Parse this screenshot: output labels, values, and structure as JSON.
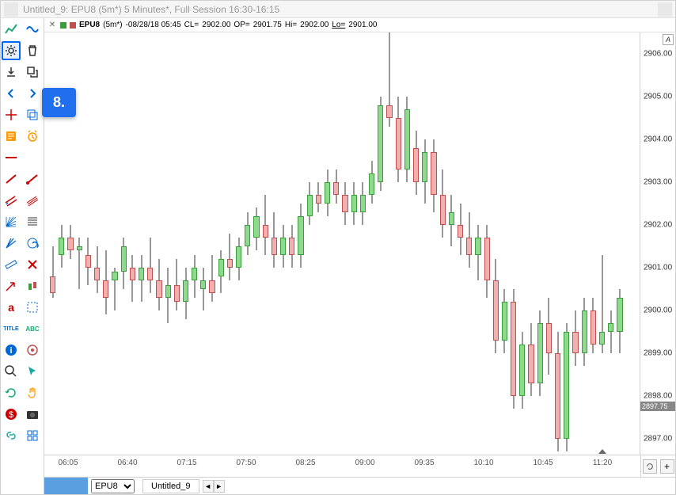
{
  "titlebar": {
    "title": "Untitled_9: EPU8 (5m*) 5 Minutes*, Full Session 16:30-16:15"
  },
  "callout": {
    "label": "8."
  },
  "databar": {
    "symbol": "EPU8",
    "interval": "(5m*)",
    "date": "-08/28/18 05:45",
    "cl_label": "CL=",
    "cl": "2902.00",
    "op_label": "OP=",
    "op": "2901.75",
    "hi_label": "Hi=",
    "hi": "2902.00",
    "lo_label": "Lo=",
    "lo": "2901.00",
    "up_color": "#3a9f3a",
    "dn_color": "#c05050"
  },
  "chart": {
    "ymin": 2896.5,
    "ymax": 2906.5,
    "yticks": [
      2897.0,
      2898.0,
      2899.0,
      2900.0,
      2901.0,
      2902.0,
      2903.0,
      2904.0,
      2905.0,
      2906.0
    ],
    "price_marker": 2897.75,
    "xticks": [
      "06:05",
      "06:40",
      "07:15",
      "07:50",
      "08:25",
      "09:00",
      "09:35",
      "10:10",
      "10:45",
      "11:20"
    ],
    "xarrow_index": 9,
    "up_fill": "#8fd98f",
    "up_border": "#3a9f3a",
    "dn_fill": "#f0b0b0",
    "dn_border": "#c05050",
    "candles": [
      {
        "o": 2900.8,
        "h": 2901.5,
        "l": 2900.3,
        "c": 2900.4
      },
      {
        "o": 2901.3,
        "h": 2902.0,
        "l": 2901.0,
        "c": 2901.7
      },
      {
        "o": 2901.7,
        "h": 2902.0,
        "l": 2901.2,
        "c": 2901.4
      },
      {
        "o": 2901.4,
        "h": 2901.7,
        "l": 2900.5,
        "c": 2901.5
      },
      {
        "o": 2901.3,
        "h": 2901.7,
        "l": 2900.6,
        "c": 2901.0
      },
      {
        "o": 2901.0,
        "h": 2901.5,
        "l": 2900.4,
        "c": 2900.7
      },
      {
        "o": 2900.7,
        "h": 2901.4,
        "l": 2899.9,
        "c": 2900.3
      },
      {
        "o": 2900.7,
        "h": 2901.0,
        "l": 2900.0,
        "c": 2900.9
      },
      {
        "o": 2900.9,
        "h": 2901.7,
        "l": 2900.5,
        "c": 2901.5
      },
      {
        "o": 2901.0,
        "h": 2901.3,
        "l": 2900.2,
        "c": 2900.7
      },
      {
        "o": 2900.7,
        "h": 2901.3,
        "l": 2900.2,
        "c": 2901.0
      },
      {
        "o": 2901.0,
        "h": 2901.7,
        "l": 2900.4,
        "c": 2900.7
      },
      {
        "o": 2900.7,
        "h": 2901.2,
        "l": 2900.0,
        "c": 2900.3
      },
      {
        "o": 2900.3,
        "h": 2901.0,
        "l": 2899.7,
        "c": 2900.6
      },
      {
        "o": 2900.6,
        "h": 2901.2,
        "l": 2900.0,
        "c": 2900.2
      },
      {
        "o": 2900.2,
        "h": 2901.0,
        "l": 2899.8,
        "c": 2900.7
      },
      {
        "o": 2900.7,
        "h": 2901.3,
        "l": 2900.3,
        "c": 2901.0
      },
      {
        "o": 2900.5,
        "h": 2901.0,
        "l": 2900.0,
        "c": 2900.7
      },
      {
        "o": 2900.7,
        "h": 2901.3,
        "l": 2900.2,
        "c": 2900.4
      },
      {
        "o": 2900.8,
        "h": 2901.4,
        "l": 2900.4,
        "c": 2901.2
      },
      {
        "o": 2901.2,
        "h": 2901.8,
        "l": 2900.7,
        "c": 2901.0
      },
      {
        "o": 2901.0,
        "h": 2901.7,
        "l": 2900.7,
        "c": 2901.5
      },
      {
        "o": 2901.5,
        "h": 2902.3,
        "l": 2901.3,
        "c": 2902.0
      },
      {
        "o": 2901.7,
        "h": 2902.4,
        "l": 2901.4,
        "c": 2902.2
      },
      {
        "o": 2902.0,
        "h": 2902.7,
        "l": 2901.3,
        "c": 2901.7
      },
      {
        "o": 2901.7,
        "h": 2902.3,
        "l": 2901.0,
        "c": 2901.3
      },
      {
        "o": 2901.3,
        "h": 2902.0,
        "l": 2901.0,
        "c": 2901.7
      },
      {
        "o": 2901.7,
        "h": 2902.0,
        "l": 2901.0,
        "c": 2901.3
      },
      {
        "o": 2901.3,
        "h": 2902.5,
        "l": 2901.0,
        "c": 2902.2
      },
      {
        "o": 2902.2,
        "h": 2903.0,
        "l": 2902.0,
        "c": 2902.7
      },
      {
        "o": 2902.7,
        "h": 2903.0,
        "l": 2902.3,
        "c": 2902.5
      },
      {
        "o": 2902.5,
        "h": 2903.3,
        "l": 2902.2,
        "c": 2903.0
      },
      {
        "o": 2903.0,
        "h": 2903.3,
        "l": 2902.5,
        "c": 2902.7
      },
      {
        "o": 2902.7,
        "h": 2903.0,
        "l": 2902.0,
        "c": 2902.3
      },
      {
        "o": 2902.3,
        "h": 2903.0,
        "l": 2902.0,
        "c": 2902.7
      },
      {
        "o": 2902.3,
        "h": 2903.0,
        "l": 2902.0,
        "c": 2902.7
      },
      {
        "o": 2902.7,
        "h": 2903.5,
        "l": 2902.5,
        "c": 2903.2
      },
      {
        "o": 2903.0,
        "h": 2905.0,
        "l": 2902.8,
        "c": 2904.8
      },
      {
        "o": 2904.8,
        "h": 2906.5,
        "l": 2904.3,
        "c": 2904.5
      },
      {
        "o": 2904.5,
        "h": 2905.0,
        "l": 2903.0,
        "c": 2903.3
      },
      {
        "o": 2903.3,
        "h": 2905.0,
        "l": 2903.0,
        "c": 2904.7
      },
      {
        "o": 2903.8,
        "h": 2904.2,
        "l": 2902.7,
        "c": 2903.0
      },
      {
        "o": 2903.0,
        "h": 2904.0,
        "l": 2902.5,
        "c": 2903.7
      },
      {
        "o": 2903.7,
        "h": 2904.0,
        "l": 2902.3,
        "c": 2902.7
      },
      {
        "o": 2902.7,
        "h": 2903.3,
        "l": 2901.7,
        "c": 2902.0
      },
      {
        "o": 2902.0,
        "h": 2902.7,
        "l": 2901.5,
        "c": 2902.3
      },
      {
        "o": 2902.0,
        "h": 2902.5,
        "l": 2901.3,
        "c": 2901.7
      },
      {
        "o": 2901.7,
        "h": 2902.3,
        "l": 2901.0,
        "c": 2901.3
      },
      {
        "o": 2901.3,
        "h": 2902.0,
        "l": 2900.7,
        "c": 2901.7
      },
      {
        "o": 2901.7,
        "h": 2902.0,
        "l": 2900.3,
        "c": 2900.7
      },
      {
        "o": 2900.7,
        "h": 2901.2,
        "l": 2899.0,
        "c": 2899.3
      },
      {
        "o": 2899.3,
        "h": 2900.5,
        "l": 2899.0,
        "c": 2900.2
      },
      {
        "o": 2900.2,
        "h": 2900.5,
        "l": 2897.7,
        "c": 2898.0
      },
      {
        "o": 2898.0,
        "h": 2899.5,
        "l": 2897.7,
        "c": 2899.2
      },
      {
        "o": 2899.2,
        "h": 2899.7,
        "l": 2898.0,
        "c": 2898.3
      },
      {
        "o": 2898.3,
        "h": 2900.0,
        "l": 2898.0,
        "c": 2899.7
      },
      {
        "o": 2899.7,
        "h": 2900.3,
        "l": 2898.5,
        "c": 2899.0
      },
      {
        "o": 2899.0,
        "h": 2899.5,
        "l": 2896.7,
        "c": 2897.0
      },
      {
        "o": 2897.0,
        "h": 2899.7,
        "l": 2896.7,
        "c": 2899.5
      },
      {
        "o": 2899.5,
        "h": 2900.0,
        "l": 2898.7,
        "c": 2899.0
      },
      {
        "o": 2899.0,
        "h": 2900.3,
        "l": 2898.7,
        "c": 2900.0
      },
      {
        "o": 2900.0,
        "h": 2900.3,
        "l": 2899.0,
        "c": 2899.2
      },
      {
        "o": 2899.2,
        "h": 2901.3,
        "l": 2899.0,
        "c": 2899.5
      },
      {
        "o": 2899.5,
        "h": 2900.0,
        "l": 2899.0,
        "c": 2899.7
      },
      {
        "o": 2899.5,
        "h": 2900.5,
        "l": 2899.0,
        "c": 2900.3
      }
    ]
  },
  "yaxis": {
    "a_label": "A"
  },
  "xaxis_right": {
    "refresh": "↻",
    "plus": "+"
  },
  "bottom": {
    "symbol": "EPU8",
    "tab": "Untitled_9"
  }
}
